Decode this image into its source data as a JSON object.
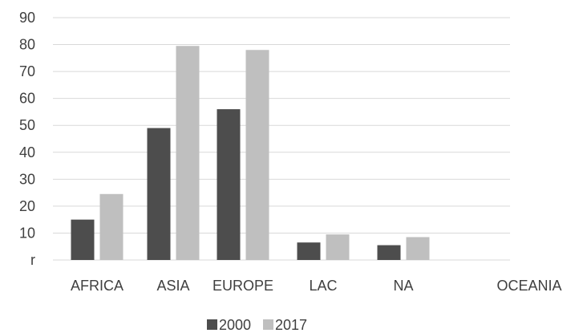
{
  "chart_data": {
    "type": "bar",
    "categories": [
      "AFRICA",
      "ASIA",
      "EUROPE",
      "LAC",
      "NA",
      "OCEANIA"
    ],
    "series": [
      {
        "name": "2000",
        "values": [
          15,
          49,
          56,
          6.5,
          5.5,
          null
        ],
        "color": "#4d4d4d"
      },
      {
        "name": "2017",
        "values": [
          24.5,
          79.5,
          78,
          9.5,
          8.5,
          null
        ],
        "color": "#bfbfbf"
      }
    ],
    "ylim": [
      0,
      90
    ],
    "yticks": [
      0,
      10,
      20,
      30,
      40,
      50,
      60,
      70,
      80,
      90
    ],
    "ytick_labels": [
      "r",
      "10",
      "20",
      "30",
      "40",
      "50",
      "60",
      "70",
      "80",
      "90"
    ],
    "grid": true,
    "legend_position": "bottom",
    "title": "",
    "xlabel": "",
    "ylabel": ""
  }
}
